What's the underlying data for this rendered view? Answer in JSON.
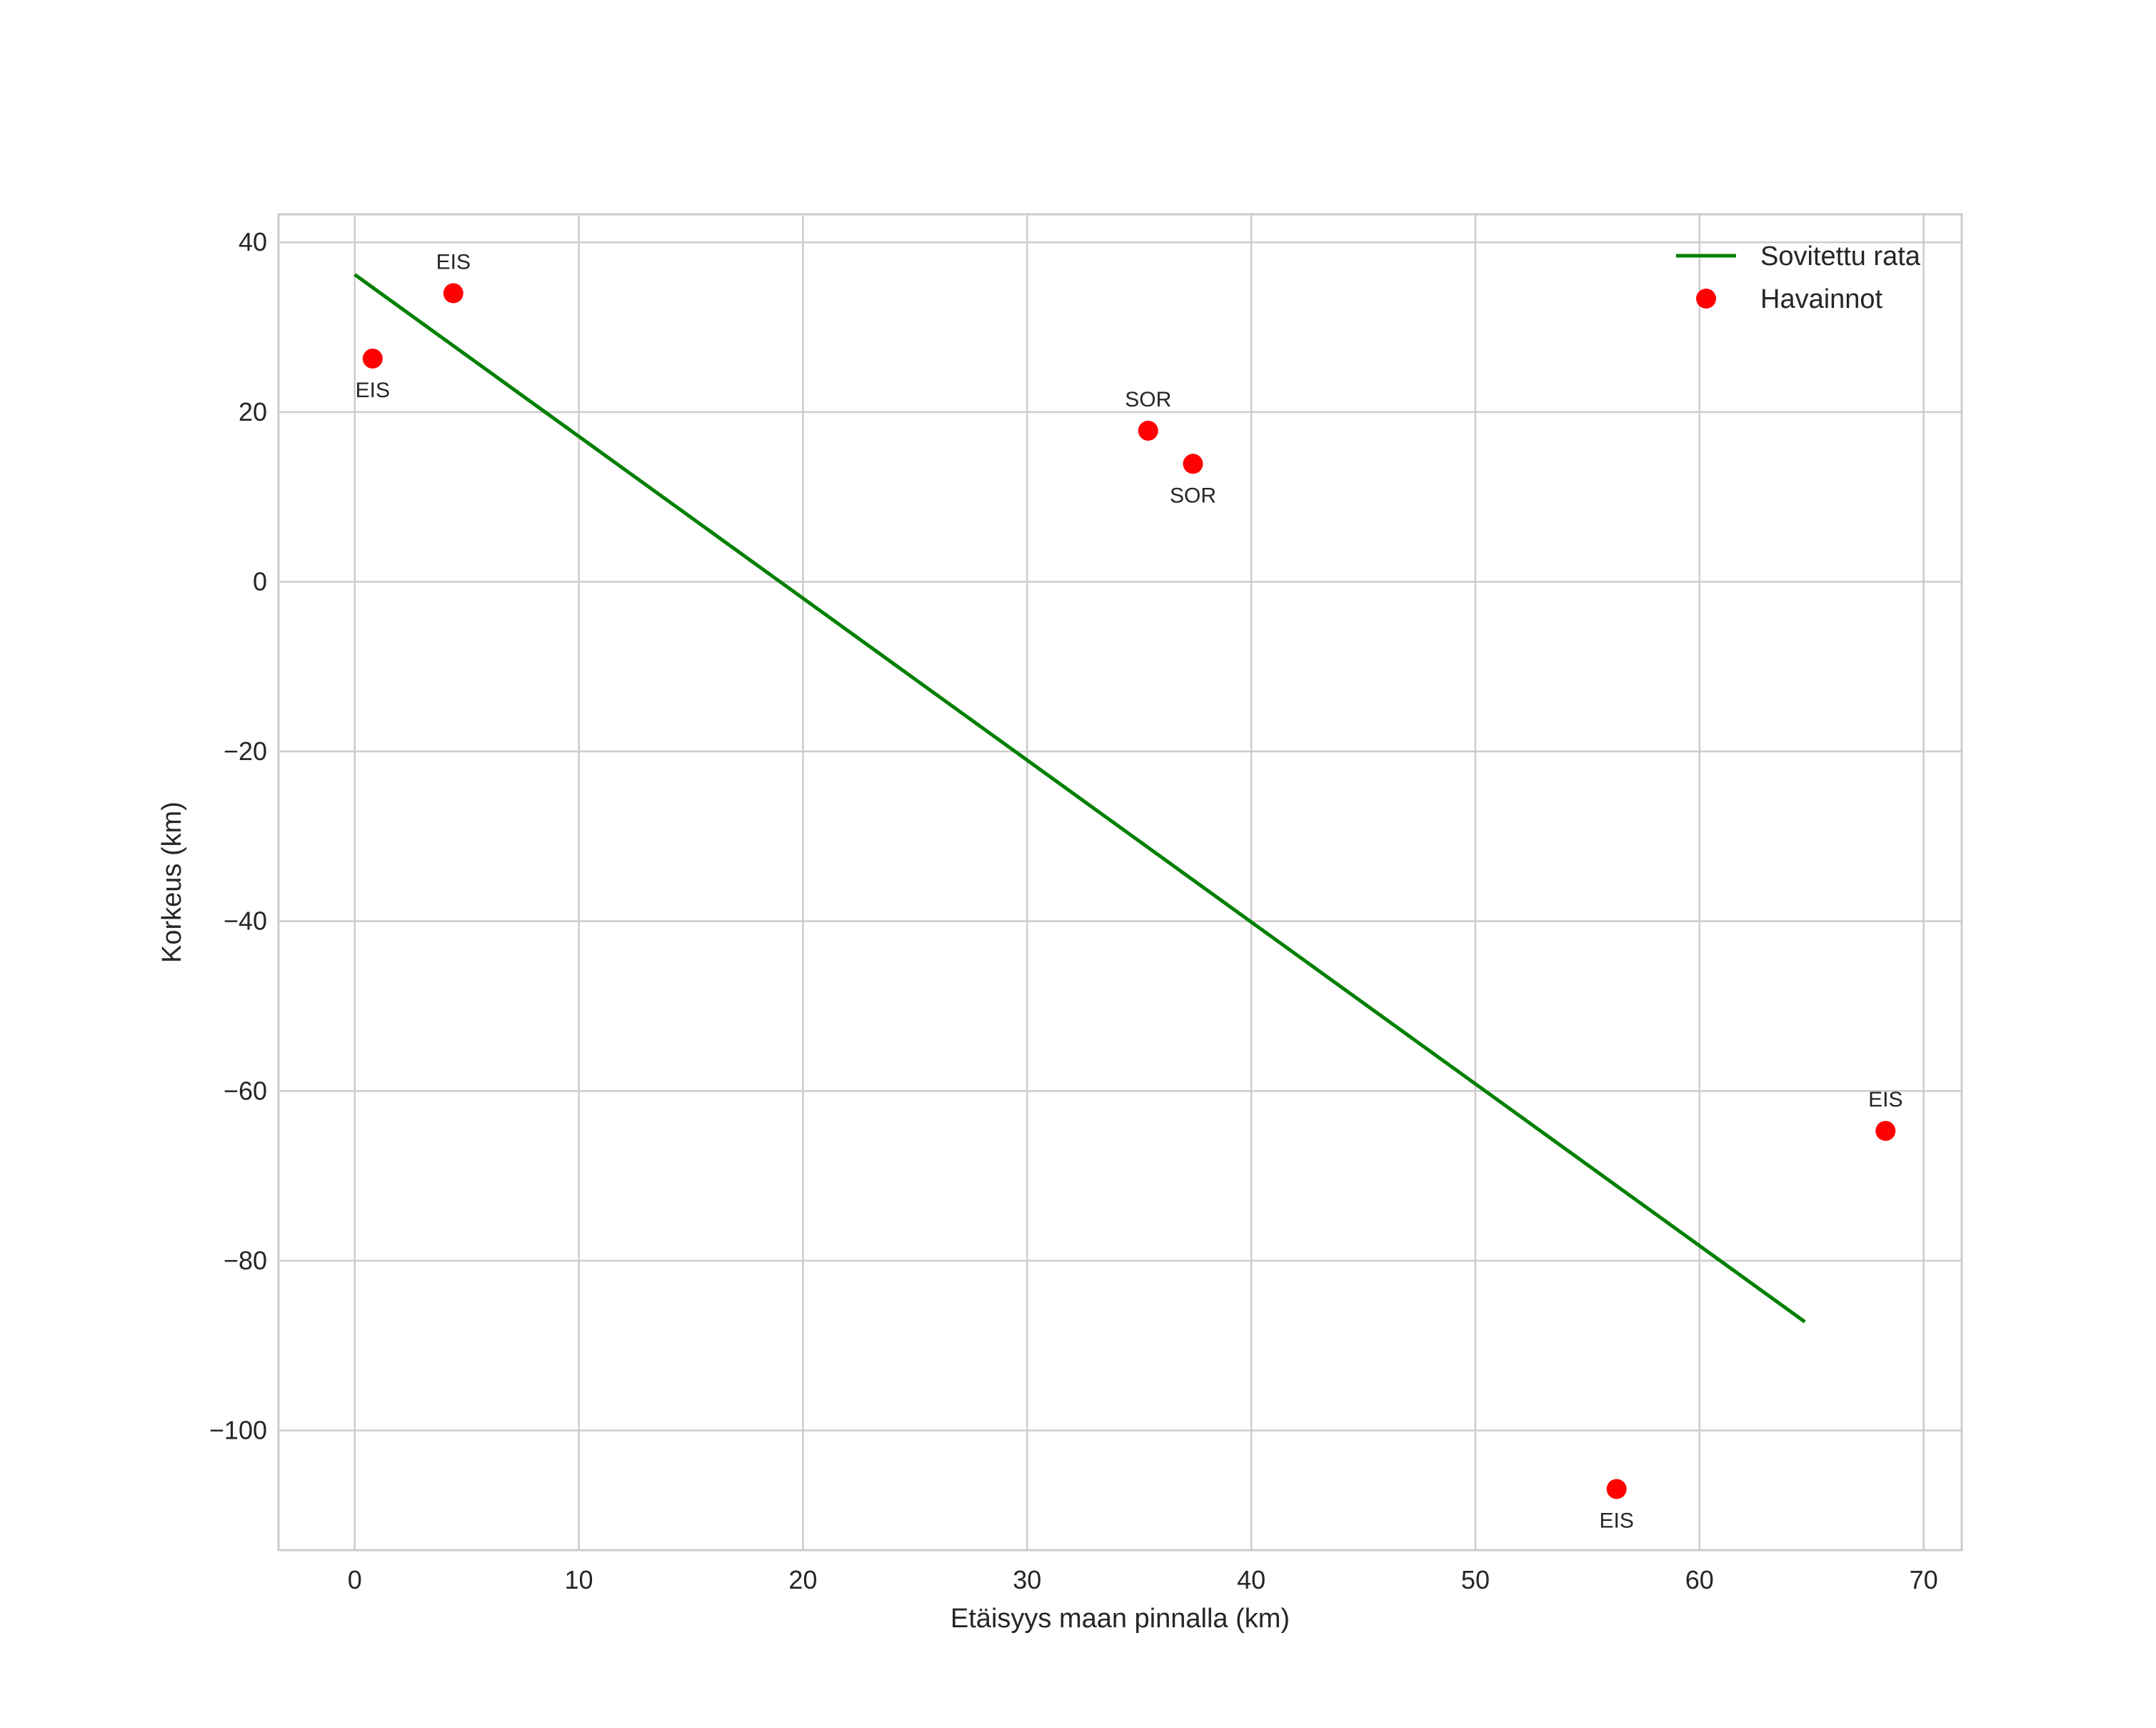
{
  "chart_data": {
    "type": "line",
    "title": "",
    "xlabel": "Etäisyys maan pinnalla (km)",
    "ylabel": "Korkeus (km)",
    "xlim": [
      -3.4,
      71.7
    ],
    "ylim": [
      -114.1,
      43.3
    ],
    "grid": true,
    "legend_position": "top-right",
    "x_ticks": [
      0,
      10,
      20,
      30,
      40,
      50,
      60,
      70
    ],
    "y_ticks": [
      40,
      20,
      0,
      -20,
      -40,
      -60,
      -80,
      -100
    ],
    "x_tick_labels": [
      "0",
      "10",
      "20",
      "30",
      "40",
      "50",
      "60",
      "70"
    ],
    "y_tick_labels": [
      "40",
      "20",
      "0",
      "−20",
      "−40",
      "−60",
      "−80",
      "−100"
    ],
    "series": [
      {
        "name": "Sovitettu rata",
        "kind": "line",
        "color": "#008000",
        "x": [
          0,
          64.7
        ],
        "y": [
          36.2,
          -87.2
        ]
      },
      {
        "name": "Havainnot",
        "kind": "scatter",
        "color": "#ff0000",
        "points": [
          {
            "x": 0.8,
            "y": 26.3,
            "label": "EIS",
            "label_pos": "below"
          },
          {
            "x": 4.4,
            "y": 34.0,
            "label": "EIS",
            "label_pos": "above"
          },
          {
            "x": 35.4,
            "y": 17.8,
            "label": "SOR",
            "label_pos": "above"
          },
          {
            "x": 37.4,
            "y": 13.9,
            "label": "SOR",
            "label_pos": "below"
          },
          {
            "x": 56.3,
            "y": -106.9,
            "label": "EIS",
            "label_pos": "below"
          },
          {
            "x": 68.3,
            "y": -64.7,
            "label": "EIS",
            "label_pos": "above"
          }
        ]
      }
    ]
  }
}
